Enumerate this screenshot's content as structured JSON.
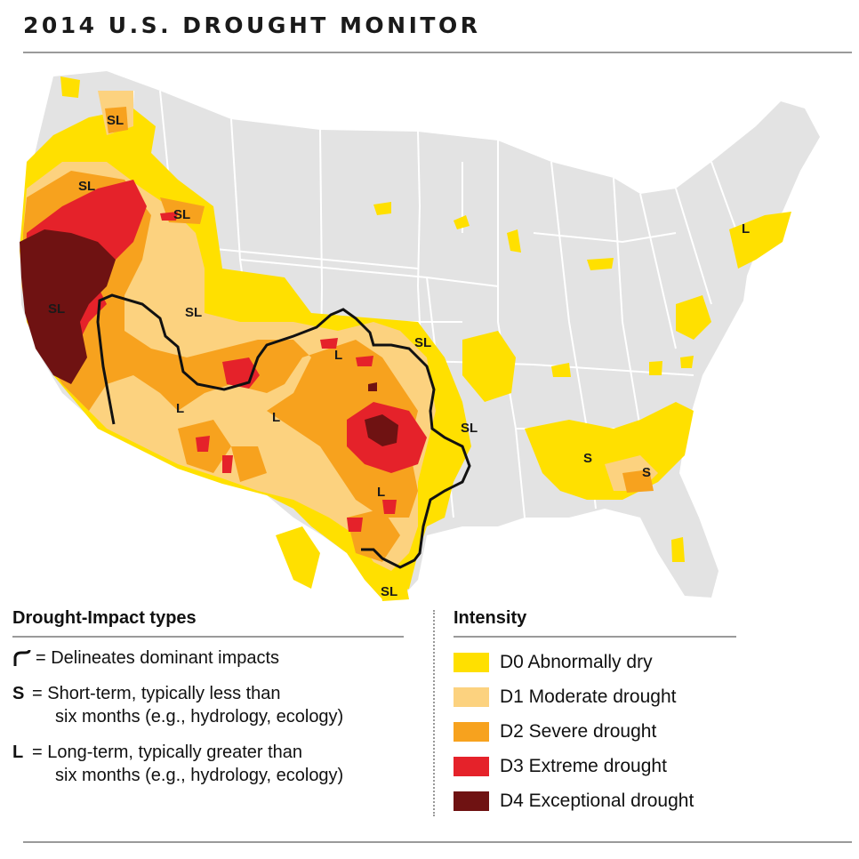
{
  "title": "2014 U.S. DROUGHT MONITOR",
  "colors": {
    "background_states": "#e3e3e3",
    "state_lines": "#ffffff",
    "D0": "#ffe000",
    "D1": "#fcd27f",
    "D2": "#f7a21e",
    "D3": "#e5222a",
    "D4": "#6f1212",
    "delineation": "#111111"
  },
  "map": {
    "impact_labels": [
      "SL",
      "SL",
      "SL",
      "SL",
      "SL",
      "SL",
      "SL",
      "SL",
      "L",
      "L",
      "L",
      "L",
      "L",
      "S",
      "S"
    ]
  },
  "legend_impact": {
    "heading": "Drought-Impact types",
    "delineates": "= Delineates dominant impacts",
    "short_code": "S",
    "short_line1": "= Short-term, typically less than",
    "short_line2": "six months (e.g., hydrology, ecology)",
    "long_code": "L",
    "long_line1": "= Long-term, typically greater than",
    "long_line2": "six months (e.g., hydrology, ecology)"
  },
  "legend_intensity": {
    "heading": "Intensity",
    "items": [
      {
        "label": "D0 Abnormally dry",
        "color": "#ffe000"
      },
      {
        "label": "D1 Moderate drought",
        "color": "#fcd27f"
      },
      {
        "label": "D2 Severe drought",
        "color": "#f7a21e"
      },
      {
        "label": "D3 Extreme drought",
        "color": "#e5222a"
      },
      {
        "label": "D4 Exceptional drought",
        "color": "#6f1212"
      }
    ]
  }
}
